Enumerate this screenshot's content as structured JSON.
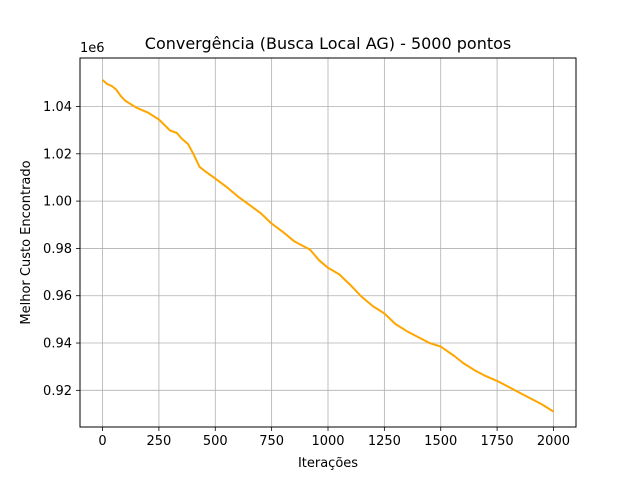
{
  "chart_data": {
    "type": "line",
    "title": "Convergência (Busca Local AG) - 5000 pontos",
    "xlabel": "Iterações",
    "ylabel": "Melhor Custo Encontrado",
    "y_offset_label": "1e6",
    "xlim": [
      -100,
      2100
    ],
    "ylim": [
      0.9045,
      1.0605
    ],
    "xticks": [
      0,
      250,
      500,
      750,
      1000,
      1250,
      1500,
      1750,
      2000
    ],
    "xtick_labels": [
      "0",
      "250",
      "500",
      "750",
      "1000",
      "1250",
      "1500",
      "1750",
      "2000"
    ],
    "yticks": [
      0.92,
      0.94,
      0.96,
      0.98,
      1.0,
      1.02,
      1.04
    ],
    "ytick_labels": [
      "0.92",
      "0.94",
      "0.96",
      "0.98",
      "1.00",
      "1.02",
      "1.04"
    ],
    "grid": true,
    "series": [
      {
        "color": "#FFA500",
        "x": [
          0,
          20,
          40,
          60,
          80,
          100,
          150,
          200,
          250,
          300,
          330,
          350,
          380,
          400,
          430,
          450,
          500,
          550,
          600,
          650,
          700,
          750,
          800,
          850,
          880,
          920,
          960,
          1000,
          1050,
          1100,
          1150,
          1200,
          1250,
          1300,
          1350,
          1400,
          1450,
          1500,
          1530,
          1560,
          1600,
          1650,
          1700,
          1750,
          1800,
          1850,
          1900,
          1950,
          2000
        ],
        "y": [
          1.0512,
          1.0495,
          1.0487,
          1.0472,
          1.0445,
          1.0425,
          1.0395,
          1.0375,
          1.0345,
          1.0298,
          1.0288,
          1.0265,
          1.024,
          1.0205,
          1.0145,
          1.013,
          1.0095,
          1.006,
          1.002,
          0.9985,
          0.995,
          0.9905,
          0.987,
          0.983,
          0.9815,
          0.9795,
          0.975,
          0.9718,
          0.969,
          0.9645,
          0.9595,
          0.9555,
          0.9525,
          0.948,
          0.945,
          0.9425,
          0.94,
          0.9385,
          0.9365,
          0.9345,
          0.9315,
          0.9285,
          0.926,
          0.924,
          0.9215,
          0.919,
          0.9165,
          0.914,
          0.911
        ]
      }
    ]
  }
}
